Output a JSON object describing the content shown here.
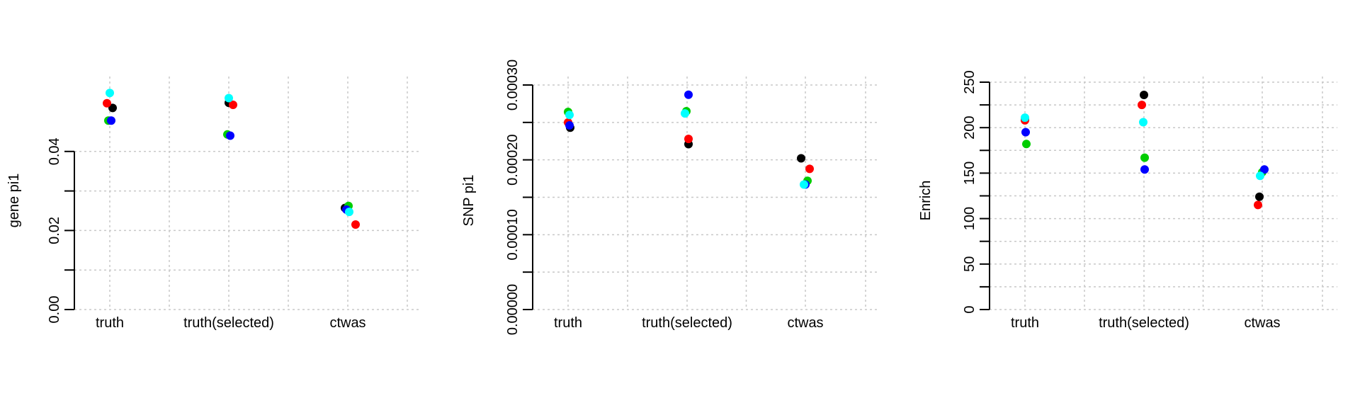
{
  "chart_data": [
    {
      "type": "scatter",
      "ylabel": "gene pi1",
      "categories": [
        "truth",
        "truth(selected)",
        "ctwas"
      ],
      "ylim": [
        0,
        0.05
      ],
      "ytick_values": [
        0,
        0.02,
        0.04
      ],
      "ytick_labels": [
        "0.00",
        "0.02",
        "0.04"
      ],
      "grid": true,
      "series": [
        {
          "color": "#000000",
          "values": [
            0.051,
            0.0523,
            0.0257
          ]
        },
        {
          "color": "#ff0000",
          "values": [
            0.0522,
            0.0518,
            0.0215
          ]
        },
        {
          "color": "#00cd00",
          "values": [
            0.0478,
            0.0443,
            0.0262
          ]
        },
        {
          "color": "#0000ff",
          "values": [
            0.0478,
            0.044,
            0.0253
          ]
        },
        {
          "color": "#00ffff",
          "values": [
            0.0548,
            0.0535,
            0.0247
          ]
        }
      ]
    },
    {
      "type": "scatter",
      "ylabel": "SNP pi1",
      "categories": [
        "truth",
        "truth(selected)",
        "ctwas"
      ],
      "ylim": [
        0,
        0.0003
      ],
      "ytick_values": [
        0,
        0.0001,
        0.0002,
        0.0003
      ],
      "ytick_labels": [
        "0.00000",
        "0.00010",
        "0.00020",
        "0.00030"
      ],
      "grid": true,
      "series": [
        {
          "color": "#000000",
          "values": [
            0.000243,
            0.000221,
            0.000202
          ]
        },
        {
          "color": "#ff0000",
          "values": [
            0.00025,
            0.000228,
            0.000188
          ]
        },
        {
          "color": "#00cd00",
          "values": [
            0.000264,
            0.000265,
            0.000172
          ]
        },
        {
          "color": "#0000ff",
          "values": [
            0.000246,
            0.000287,
            0.000167
          ]
        },
        {
          "color": "#00ffff",
          "values": [
            0.00026,
            0.000262,
            0.000167
          ]
        }
      ]
    },
    {
      "type": "scatter",
      "ylabel": "Enrich",
      "categories": [
        "truth",
        "truth(selected)",
        "ctwas"
      ],
      "ylim": [
        0,
        250
      ],
      "ytick_values": [
        0,
        50,
        100,
        150,
        200,
        250
      ],
      "ytick_labels": [
        "0",
        "50",
        "100",
        "150",
        "200",
        "250"
      ],
      "grid": true,
      "series": [
        {
          "color": "#000000",
          "values": [
            209,
            236,
            124
          ]
        },
        {
          "color": "#ff0000",
          "values": [
            208,
            225,
            115
          ]
        },
        {
          "color": "#00cd00",
          "values": [
            182,
            167,
            151
          ]
        },
        {
          "color": "#0000ff",
          "values": [
            195,
            154,
            154
          ]
        },
        {
          "color": "#00ffff",
          "values": [
            211,
            206,
            147
          ]
        }
      ]
    }
  ]
}
